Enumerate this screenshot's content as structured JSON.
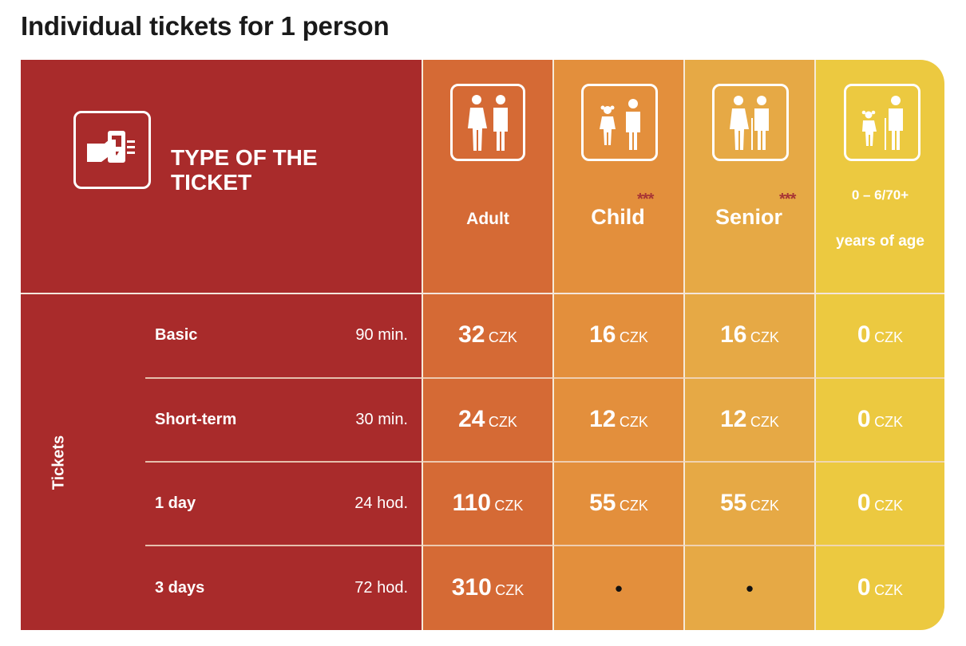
{
  "title": "Individual tickets for 1 person",
  "header": {
    "type_label": "TYPE OF THE TICKET",
    "adult": "Adult",
    "child": "Child",
    "child_mark": "***",
    "senior": "Senior",
    "senior_mark": "***",
    "free_line1": "0 – 6/70+",
    "free_line2": "years of age"
  },
  "side_label": "Tickets",
  "currency": "CZK",
  "rows": [
    {
      "name": "Basic",
      "duration": "90 min.",
      "adult": "32",
      "child": "16",
      "senior": "16",
      "free": "0"
    },
    {
      "name": "Short-term",
      "duration": "30 min.",
      "adult": "24",
      "child": "12",
      "senior": "12",
      "free": "0"
    },
    {
      "name": "1 day",
      "duration": "24 hod.",
      "adult": "110",
      "child": "55",
      "senior": "55",
      "free": "0"
    },
    {
      "name": "3 days",
      "duration": "72 hod.",
      "adult": "310",
      "child": "•",
      "senior": "•",
      "free": "0"
    }
  ],
  "colors": {
    "type_column": "#a92b2b",
    "adult_column": "#d56a35",
    "child_column": "#e38f3c",
    "senior_column": "#e6a945",
    "free_column": "#ecc940",
    "stars": "#a83535"
  },
  "icons": [
    "ticket-validator-icon",
    "adults-icon",
    "child-adult-icon",
    "seniors-icon",
    "child-senior-icon"
  ]
}
